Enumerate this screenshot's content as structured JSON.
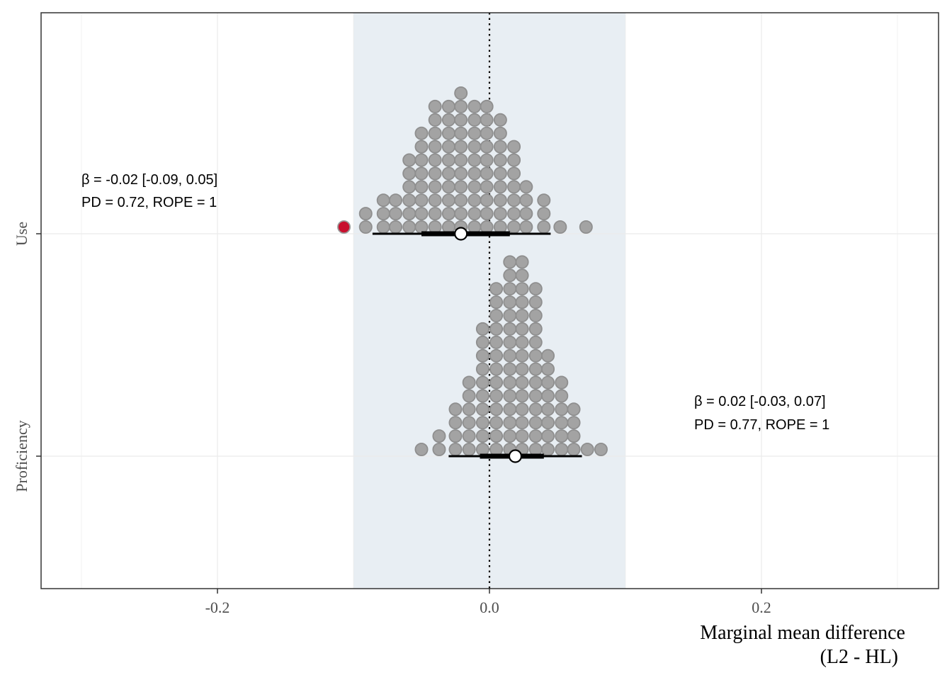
{
  "chart_data": {
    "type": "dotplot",
    "title": "",
    "xlabel_lines": [
      "Marginal mean difference",
      "(L2 - HL)"
    ],
    "ylabel": "",
    "xlim": [
      -0.33,
      0.33
    ],
    "x_ticks": [
      -0.2,
      0.0,
      0.2
    ],
    "x_tick_labels": [
      "-0.2",
      "0.0",
      "0.2"
    ],
    "reference_line": 0.0,
    "rope": [
      -0.1,
      0.1
    ],
    "grid": true,
    "categories": [
      "Use",
      "Proficiency"
    ],
    "series": [
      {
        "category": "Use",
        "dot_bins": [
          {
            "x": -0.107,
            "count": 1,
            "highlight": true
          },
          {
            "x": -0.091,
            "count": 2
          },
          {
            "x": -0.078,
            "count": 3
          },
          {
            "x": -0.069,
            "count": 3
          },
          {
            "x": -0.059,
            "count": 6
          },
          {
            "x": -0.05,
            "count": 8
          },
          {
            "x": -0.04,
            "count": 10
          },
          {
            "x": -0.03,
            "count": 10
          },
          {
            "x": -0.021,
            "count": 11
          },
          {
            "x": -0.011,
            "count": 10
          },
          {
            "x": -0.002,
            "count": 10
          },
          {
            "x": 0.008,
            "count": 9
          },
          {
            "x": 0.018,
            "count": 7
          },
          {
            "x": 0.027,
            "count": 4
          },
          {
            "x": 0.04,
            "count": 3
          },
          {
            "x": 0.052,
            "count": 1
          },
          {
            "x": 0.071,
            "count": 1
          }
        ],
        "point_estimate": -0.021,
        "interval_inner": [
          -0.05,
          0.015
        ],
        "interval_outer": [
          -0.086,
          0.045
        ],
        "annotation": [
          "β = -0.02 [-0.09, 0.05]",
          "PD = 0.72, ROPE = 1"
        ]
      },
      {
        "category": "Proficiency",
        "dot_bins": [
          {
            "x": -0.05,
            "count": 1
          },
          {
            "x": -0.037,
            "count": 2
          },
          {
            "x": -0.025,
            "count": 4
          },
          {
            "x": -0.015,
            "count": 6
          },
          {
            "x": -0.005,
            "count": 10
          },
          {
            "x": 0.005,
            "count": 13
          },
          {
            "x": 0.015,
            "count": 15
          },
          {
            "x": 0.024,
            "count": 15
          },
          {
            "x": 0.034,
            "count": 13
          },
          {
            "x": 0.043,
            "count": 8
          },
          {
            "x": 0.053,
            "count": 6
          },
          {
            "x": 0.062,
            "count": 4
          },
          {
            "x": 0.072,
            "count": 1
          },
          {
            "x": 0.082,
            "count": 1
          }
        ],
        "point_estimate": 0.019,
        "interval_inner": [
          -0.007,
          0.04
        ],
        "interval_outer": [
          -0.03,
          0.068
        ],
        "annotation": [
          "β = 0.02 [-0.03, 0.07]",
          "PD = 0.77, ROPE = 1"
        ]
      }
    ],
    "colors": {
      "dot_fill": "#a3a3a3",
      "dot_stroke": "#8f8f8f",
      "highlight_fill": "#c8102e",
      "rope_fill": "#e8eef3",
      "grid": "#ebebeb",
      "interval": "#000000",
      "estimate_fill": "#ffffff"
    }
  }
}
